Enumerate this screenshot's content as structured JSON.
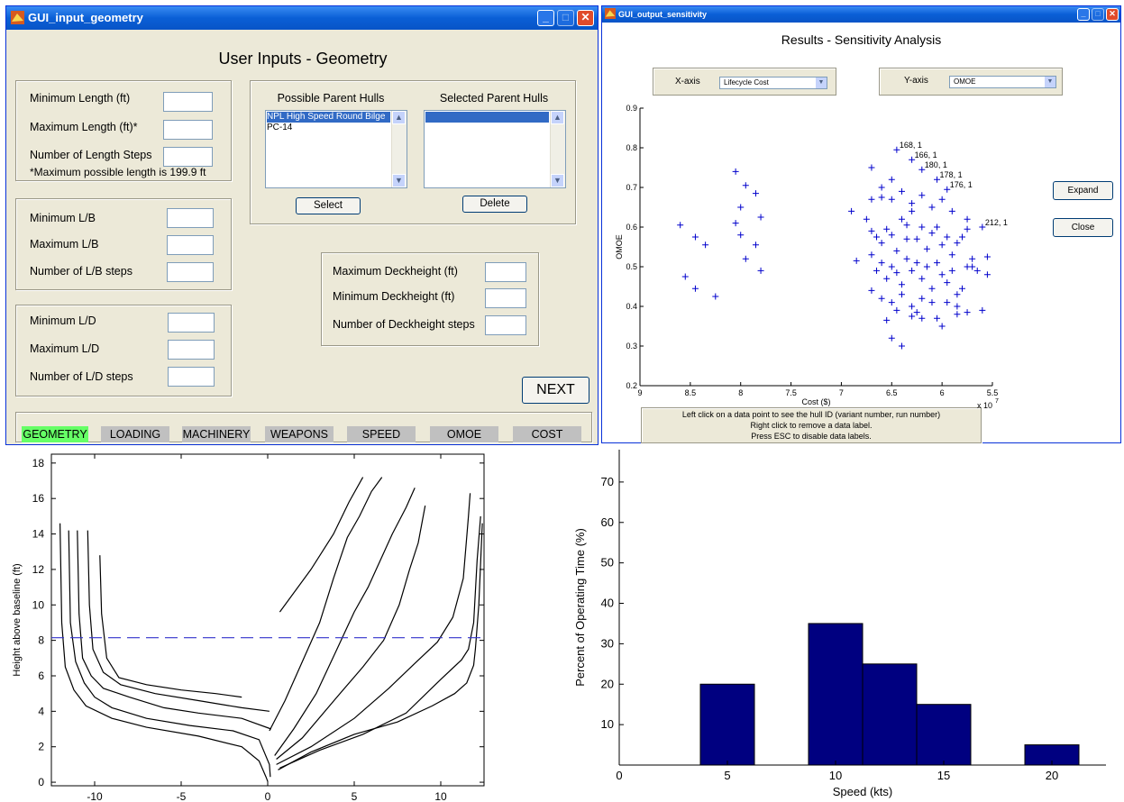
{
  "geometry_window": {
    "title": "GUI_input_geometry",
    "heading": "User Inputs - Geometry",
    "length": {
      "min_label": "Minimum Length (ft)",
      "max_label": "Maximum Length (ft)*",
      "steps_label": "Number of Length Steps",
      "note": "*Maximum possible length is 199.9 ft"
    },
    "lb": {
      "min_label": "Minimum L/B",
      "max_label": "Maximum L/B",
      "steps_label": "Number of L/B steps"
    },
    "ld": {
      "min_label": "Minimum L/D",
      "max_label": "Maximum L/D",
      "steps_label": "Number of L/D steps"
    },
    "deck": {
      "max_label": "Maximum Deckheight (ft)",
      "min_label": "Minimum Deckheight (ft)",
      "steps_label": "Number of Deckheight steps"
    },
    "parent_hulls": {
      "possible_label": "Possible Parent Hulls",
      "selected_label": "Selected Parent Hulls",
      "possible_items": [
        "NPL High Speed Round Bilge",
        "PC-14"
      ],
      "select_button": "Select",
      "delete_button": "Delete"
    },
    "next_button": "NEXT",
    "tabs": [
      "GEOMETRY",
      "LOADING",
      "MACHINERY",
      "WEAPONS",
      "SPEED",
      "OMOE",
      "COST"
    ],
    "active_tab": "GEOMETRY",
    "active_tab_color": "#66ff66",
    "tab_color": "#c0c0c0"
  },
  "sensitivity_window": {
    "title": "GUI_output_sensitivity",
    "heading": "Results - Sensitivity Analysis",
    "x_axis_label": "X-axis",
    "x_axis_value": "Lifecycle Cost",
    "y_axis_label": "Y-axis",
    "y_axis_value": "OMOE",
    "expand_button": "Expand",
    "close_button": "Close",
    "help_lines": [
      "Left click on a data point to see the hull ID (variant number, run number)",
      "Right click to remove a data label.",
      "Press ESC to disable data labels."
    ]
  },
  "chart_data": [
    {
      "type": "scatter",
      "title": "",
      "xlabel": "Cost ($)",
      "ylabel": "OMOE",
      "x_multiplier": "x 10",
      "x_multiplier_exp": "7",
      "xlim": [
        9,
        5.5
      ],
      "ylim": [
        0.2,
        0.9
      ],
      "x_reversed": true,
      "xticks": [
        "9",
        "8.5",
        "8",
        "7.5",
        "7",
        "6.5",
        "6",
        "5.5"
      ],
      "yticks": [
        "0.2",
        "0.3",
        "0.4",
        "0.5",
        "0.6",
        "0.7",
        "0.8",
        "0.9"
      ],
      "marker": "+",
      "color": "#0000cc",
      "points": [
        [
          8.6,
          0.605
        ],
        [
          8.45,
          0.575
        ],
        [
          8.35,
          0.555
        ],
        [
          8.55,
          0.475
        ],
        [
          8.45,
          0.445
        ],
        [
          8.25,
          0.425
        ],
        [
          8.05,
          0.74
        ],
        [
          7.95,
          0.705
        ],
        [
          7.85,
          0.685
        ],
        [
          8.05,
          0.61
        ],
        [
          8.0,
          0.65
        ],
        [
          7.8,
          0.625
        ],
        [
          8.0,
          0.58
        ],
        [
          7.85,
          0.555
        ],
        [
          7.95,
          0.52
        ],
        [
          7.8,
          0.49
        ],
        [
          6.9,
          0.64
        ],
        [
          6.85,
          0.515
        ],
        [
          6.7,
          0.75
        ],
        [
          6.75,
          0.62
        ],
        [
          6.7,
          0.67
        ],
        [
          6.6,
          0.7
        ],
        [
          6.5,
          0.72
        ],
        [
          6.45,
          0.795
        ],
        [
          6.3,
          0.77
        ],
        [
          6.2,
          0.745
        ],
        [
          6.05,
          0.72
        ],
        [
          5.95,
          0.695
        ],
        [
          5.75,
          0.62
        ],
        [
          5.75,
          0.595
        ],
        [
          6.6,
          0.675
        ],
        [
          6.5,
          0.67
        ],
        [
          6.4,
          0.69
        ],
        [
          6.3,
          0.66
        ],
        [
          6.2,
          0.68
        ],
        [
          6.1,
          0.65
        ],
        [
          6.0,
          0.67
        ],
        [
          5.9,
          0.64
        ],
        [
          6.7,
          0.59
        ],
        [
          6.65,
          0.575
        ],
        [
          6.6,
          0.56
        ],
        [
          6.55,
          0.595
        ],
        [
          6.5,
          0.58
        ],
        [
          6.45,
          0.54
        ],
        [
          6.4,
          0.62
        ],
        [
          6.35,
          0.605
        ],
        [
          6.3,
          0.64
        ],
        [
          6.25,
          0.57
        ],
        [
          6.2,
          0.6
        ],
        [
          6.15,
          0.545
        ],
        [
          6.1,
          0.585
        ],
        [
          6.05,
          0.6
        ],
        [
          6.0,
          0.555
        ],
        [
          5.95,
          0.575
        ],
        [
          5.9,
          0.53
        ],
        [
          5.85,
          0.56
        ],
        [
          5.8,
          0.575
        ],
        [
          5.75,
          0.5
        ],
        [
          5.7,
          0.52
        ],
        [
          6.7,
          0.53
        ],
        [
          6.65,
          0.49
        ],
        [
          6.6,
          0.51
        ],
        [
          6.55,
          0.47
        ],
        [
          6.5,
          0.5
        ],
        [
          6.45,
          0.485
        ],
        [
          6.4,
          0.455
        ],
        [
          6.35,
          0.52
        ],
        [
          6.3,
          0.49
        ],
        [
          6.25,
          0.51
        ],
        [
          6.2,
          0.47
        ],
        [
          6.15,
          0.5
        ],
        [
          6.1,
          0.445
        ],
        [
          6.05,
          0.51
        ],
        [
          6.0,
          0.48
        ],
        [
          5.95,
          0.46
        ],
        [
          5.9,
          0.49
        ],
        [
          5.85,
          0.43
        ],
        [
          5.8,
          0.445
        ],
        [
          5.7,
          0.5
        ],
        [
          5.65,
          0.49
        ],
        [
          6.7,
          0.44
        ],
        [
          6.6,
          0.42
        ],
        [
          6.5,
          0.41
        ],
        [
          6.45,
          0.39
        ],
        [
          6.4,
          0.43
        ],
        [
          6.3,
          0.4
        ],
        [
          6.25,
          0.385
        ],
        [
          6.2,
          0.42
        ],
        [
          6.1,
          0.41
        ],
        [
          6.05,
          0.37
        ],
        [
          5.95,
          0.41
        ],
        [
          5.85,
          0.4
        ],
        [
          5.75,
          0.385
        ],
        [
          5.6,
          0.39
        ],
        [
          6.55,
          0.365
        ],
        [
          6.5,
          0.32
        ],
        [
          6.3,
          0.375
        ],
        [
          6.2,
          0.37
        ],
        [
          6.4,
          0.3
        ],
        [
          6.0,
          0.35
        ],
        [
          5.55,
          0.48
        ],
        [
          5.6,
          0.6
        ],
        [
          5.55,
          0.525
        ],
        [
          5.85,
          0.38
        ],
        [
          6.35,
          0.57
        ]
      ],
      "annotations": [
        {
          "x": 6.45,
          "y": 0.795,
          "text": "168, 1"
        },
        {
          "x": 6.3,
          "y": 0.77,
          "text": "166, 1"
        },
        {
          "x": 6.2,
          "y": 0.745,
          "text": "180, 1"
        },
        {
          "x": 6.05,
          "y": 0.72,
          "text": "178, 1"
        },
        {
          "x": 5.95,
          "y": 0.695,
          "text": "176, 1"
        },
        {
          "x": 5.6,
          "y": 0.6,
          "text": "212, 1"
        }
      ]
    },
    {
      "type": "line",
      "title": "",
      "xlabel": "",
      "ylabel": "Height above baseline (ft)",
      "xlim": [
        -12.5,
        12.5
      ],
      "ylim": [
        -0.2,
        18.5
      ],
      "xticks": [
        -10,
        -5,
        0,
        5,
        10
      ],
      "yticks": [
        0,
        2,
        4,
        6,
        8,
        10,
        12,
        14,
        16,
        18
      ],
      "line_color": "#000000",
      "reference_line": {
        "y": 8.15,
        "color": "#3333cc",
        "style": "dashed"
      },
      "series": [
        {
          "values": [
            [
              -12.0,
              14.6
            ],
            [
              -11.9,
              9.0
            ],
            [
              -11.7,
              6.5
            ],
            [
              -11.2,
              5.2
            ],
            [
              -10.5,
              4.3
            ],
            [
              -9.0,
              3.6
            ],
            [
              -7.0,
              3.1
            ],
            [
              -4.0,
              2.6
            ],
            [
              -1.5,
              2.0
            ],
            [
              -0.5,
              1.2
            ],
            [
              -0.1,
              0.3
            ],
            [
              0,
              0.05
            ]
          ]
        },
        {
          "values": [
            [
              -11.5,
              14.2
            ],
            [
              -11.4,
              9.0
            ],
            [
              -11.1,
              6.8
            ],
            [
              -10.6,
              5.6
            ],
            [
              -10.0,
              4.8
            ],
            [
              -9.0,
              4.2
            ],
            [
              -7.0,
              3.6
            ],
            [
              -4.5,
              3.2
            ],
            [
              -2.0,
              2.9
            ],
            [
              -0.5,
              2.4
            ],
            [
              0.1,
              1.0
            ],
            [
              0.15,
              0.3
            ]
          ]
        },
        {
          "values": [
            [
              -11.0,
              14.2
            ],
            [
              -10.9,
              9.5
            ],
            [
              -10.7,
              7.0
            ],
            [
              -10.2,
              6.0
            ],
            [
              -9.5,
              5.3
            ],
            [
              -8.0,
              4.8
            ],
            [
              -6.0,
              4.2
            ],
            [
              -4.0,
              3.9
            ],
            [
              -1.5,
              3.6
            ],
            [
              0.2,
              3.0
            ]
          ]
        },
        {
          "values": [
            [
              -10.4,
              14.2
            ],
            [
              -10.3,
              10.0
            ],
            [
              -10.1,
              7.5
            ],
            [
              -9.5,
              6.2
            ],
            [
              -8.5,
              5.5
            ],
            [
              -6.5,
              5.0
            ],
            [
              -4.0,
              4.6
            ],
            [
              -1.5,
              4.2
            ],
            [
              0.1,
              4.0
            ]
          ]
        },
        {
          "values": [
            [
              -9.7,
              12.8
            ],
            [
              -9.6,
              9.5
            ],
            [
              -9.3,
              7.0
            ],
            [
              -8.6,
              5.9
            ],
            [
              -7.0,
              5.5
            ],
            [
              -5.0,
              5.2
            ],
            [
              -3.0,
              5.0
            ],
            [
              -1.5,
              4.8
            ]
          ]
        },
        {
          "values": [
            [
              0.6,
              0.7
            ],
            [
              2.5,
              1.7
            ],
            [
              5.0,
              2.7
            ],
            [
              7.5,
              3.4
            ],
            [
              9.5,
              4.3
            ],
            [
              10.8,
              5.0
            ],
            [
              11.5,
              5.6
            ],
            [
              11.9,
              6.6
            ],
            [
              12.0,
              7.5
            ],
            [
              12.2,
              10.0
            ],
            [
              12.4,
              14.6
            ]
          ]
        },
        {
          "values": [
            [
              0.7,
              0.8
            ],
            [
              3.0,
              1.8
            ],
            [
              5.5,
              2.7
            ],
            [
              8.0,
              3.9
            ],
            [
              10.0,
              5.8
            ],
            [
              11.2,
              6.9
            ],
            [
              11.6,
              7.5
            ],
            [
              11.9,
              9.0
            ],
            [
              12.1,
              12.5
            ],
            [
              12.3,
              15.0
            ]
          ]
        },
        {
          "values": [
            [
              0.5,
              1.0
            ],
            [
              2.5,
              2.0
            ],
            [
              5.0,
              3.6
            ],
            [
              7.0,
              5.3
            ],
            [
              8.5,
              6.7
            ],
            [
              9.8,
              7.9
            ],
            [
              10.7,
              9.3
            ],
            [
              11.3,
              11.5
            ],
            [
              11.6,
              15.0
            ],
            [
              11.7,
              16.3
            ]
          ]
        },
        {
          "values": [
            [
              0.5,
              1.3
            ],
            [
              2.0,
              2.5
            ],
            [
              4.0,
              4.8
            ],
            [
              5.5,
              6.5
            ],
            [
              6.7,
              8.0
            ],
            [
              7.6,
              10.0
            ],
            [
              8.2,
              12.0
            ],
            [
              8.7,
              13.5
            ],
            [
              9.1,
              15.6
            ]
          ]
        },
        {
          "values": [
            [
              0.4,
              1.5
            ],
            [
              1.5,
              3.0
            ],
            [
              2.8,
              5.0
            ],
            [
              4.0,
              7.5
            ],
            [
              5.0,
              9.6
            ],
            [
              5.8,
              11.0
            ],
            [
              6.5,
              12.5
            ],
            [
              7.2,
              14.0
            ],
            [
              8.0,
              15.5
            ],
            [
              8.5,
              16.6
            ]
          ]
        },
        {
          "values": [
            [
              0.1,
              2.9
            ],
            [
              1.0,
              4.6
            ],
            [
              2.0,
              6.8
            ],
            [
              3.0,
              9.0
            ],
            [
              3.8,
              11.5
            ],
            [
              4.6,
              13.8
            ],
            [
              5.3,
              15.0
            ],
            [
              6.0,
              16.4
            ],
            [
              6.6,
              17.2
            ]
          ]
        },
        {
          "values": [
            [
              0.7,
              9.6
            ],
            [
              2.5,
              12.0
            ],
            [
              3.8,
              14.0
            ],
            [
              4.7,
              15.8
            ],
            [
              5.5,
              17.2
            ]
          ]
        }
      ]
    },
    {
      "type": "bar",
      "title": "",
      "xlabel": "Speed (kts)",
      "ylabel": "Percent of Operating Time (%)",
      "xlim": [
        0,
        22.5
      ],
      "ylim": [
        0,
        78
      ],
      "xticks": [
        0,
        5,
        10,
        15,
        20
      ],
      "yticks": [
        10,
        20,
        30,
        40,
        50,
        60,
        70
      ],
      "bar_color": "#000080",
      "bars": [
        {
          "center": 5.0,
          "width": 2.5,
          "value": 20
        },
        {
          "center": 10.0,
          "width": 2.5,
          "value": 35
        },
        {
          "center": 12.5,
          "width": 2.5,
          "value": 25
        },
        {
          "center": 15.0,
          "width": 2.5,
          "value": 15
        },
        {
          "center": 20.0,
          "width": 2.5,
          "value": 5
        }
      ]
    }
  ]
}
